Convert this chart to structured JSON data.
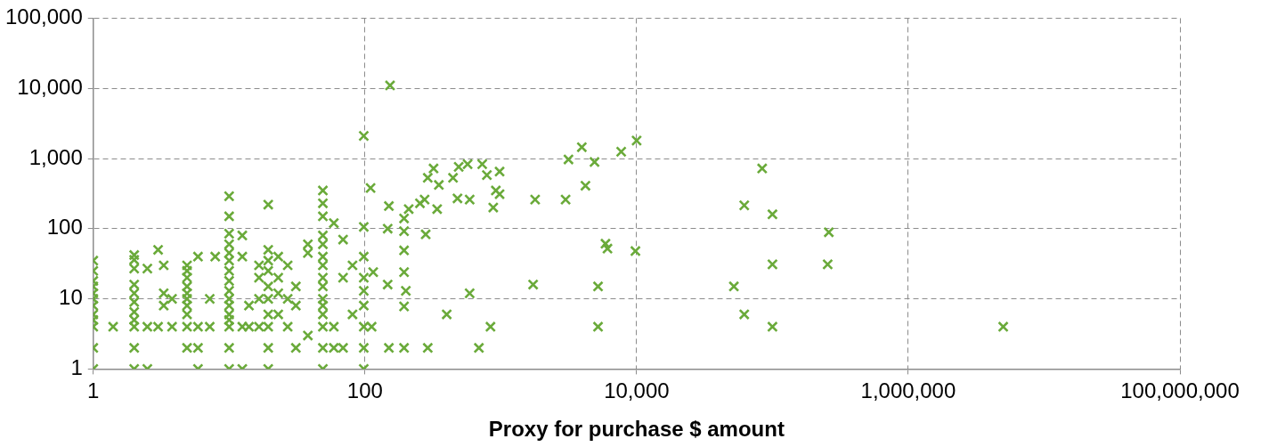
{
  "chart_data": {
    "type": "scatter",
    "xlabel": "Proxy for purchase $ amount",
    "log": "xy",
    "grid": true,
    "legend": false,
    "marker": "cross",
    "xlim": [
      1,
      100000000
    ],
    "ylim": [
      1,
      100000
    ],
    "xticks": [
      1,
      100,
      {
        "value": 10000,
        "label": "10,000"
      },
      {
        "value": 1000000,
        "label": "1,000,000"
      },
      {
        "value": 100000000,
        "label": "100,000,000"
      }
    ],
    "yticks": [
      1,
      10,
      100,
      {
        "value": 1000,
        "label": "1,000"
      },
      {
        "value": 10000,
        "label": "10,000"
      },
      {
        "value": 100000,
        "label": "100,000"
      }
    ],
    "series": [
      {
        "color": "#6aaa3a",
        "x": [
          1,
          1,
          1,
          1,
          1,
          1,
          1,
          1,
          1,
          1,
          1,
          1,
          1.4,
          2,
          2,
          2,
          2,
          2,
          2,
          2,
          2,
          2,
          2,
          2,
          2.5,
          2.5,
          2.5,
          3,
          3,
          3.3,
          3.3,
          3.3,
          3.8,
          3.8,
          4.9,
          4.9,
          4.9,
          4.9,
          4.9,
          4.9,
          4.9,
          4.9,
          4.9,
          4.9,
          5.9,
          5.9,
          5.9,
          5.9,
          7.2,
          7.2,
          7.9,
          10,
          10,
          10,
          10,
          10,
          10,
          10,
          10,
          10,
          10,
          10,
          10,
          10,
          10,
          10,
          10,
          12.5,
          12.5,
          12.5,
          12.5,
          14,
          14,
          16.6,
          16.6,
          16.6,
          16.6,
          19.4,
          19.4,
          19.4,
          19.4,
          19.4,
          19.4,
          19.4,
          19.4,
          19.4,
          19.4,
          23,
          23,
          23,
          23,
          27,
          27,
          27,
          31,
          31,
          31,
          38,
          38,
          38,
          49,
          49,
          49,
          49,
          49,
          49,
          49,
          49,
          49,
          49,
          49,
          49,
          49,
          49,
          49,
          59,
          59,
          59,
          69,
          69,
          69,
          81,
          81,
          98,
          98,
          98,
          98,
          98,
          98,
          98,
          98,
          98,
          110,
          115,
          112,
          147,
          147,
          150,
          150,
          153,
          194,
          194,
          194,
          194,
          194,
          194,
          200,
          210,
          254,
          275,
          280,
          290,
          290,
          320,
          340,
          350,
          400,
          445,
          490,
          480,
          570,
          590,
          590,
          690,
          730,
          790,
          840,
          880,
          920,
          980,
          980,
          1730,
          1790,
          3000,
          3150,
          3950,
          4200,
          4900,
          5200,
          5200,
          5900,
          6100,
          7700,
          9800,
          10000,
          52000,
          62000,
          62000,
          84000,
          100000,
          100000,
          100000,
          255000,
          260000,
          5000000
        ],
        "values": [
          35,
          25,
          18,
          15,
          12,
          10,
          8,
          6,
          5,
          4,
          2,
          1,
          4,
          42,
          36,
          27,
          16,
          12,
          9,
          6.5,
          5,
          4,
          2,
          1,
          1,
          4,
          27,
          50,
          4,
          30,
          12,
          8,
          10,
          4,
          30,
          25,
          20,
          15,
          12,
          10,
          8,
          6,
          4,
          2,
          40,
          4,
          2,
          1,
          10,
          4,
          40,
          290,
          150,
          85,
          60,
          45,
          35,
          25,
          18,
          13,
          10,
          8,
          6,
          5,
          4,
          2,
          1,
          80,
          40,
          4,
          1,
          8,
          4,
          30,
          20,
          10,
          4,
          220,
          50,
          35,
          25,
          15,
          10,
          6,
          4,
          2,
          1,
          40,
          20,
          12,
          6,
          30,
          10,
          4,
          15,
          8,
          2,
          60,
          45,
          3,
          350,
          230,
          150,
          80,
          60,
          40,
          30,
          20,
          15,
          10,
          8,
          6,
          4,
          2,
          1,
          120,
          4,
          2,
          70,
          20,
          2,
          30,
          6,
          2100,
          106,
          40,
          20,
          13,
          8,
          4,
          2,
          1,
          380,
          24,
          4,
          16,
          100,
          210,
          2,
          11000,
          140,
          92,
          49,
          24,
          7.8,
          2,
          13,
          190,
          230,
          260,
          83,
          530,
          2,
          720,
          190,
          420,
          6,
          530,
          760,
          270,
          830,
          260,
          12,
          2,
          830,
          580,
          4,
          200,
          350,
          650,
          310,
          16,
          260,
          260,
          970,
          1450,
          410,
          890,
          15,
          4,
          61,
          52,
          1250,
          48,
          1800,
          15,
          215,
          6,
          720,
          160,
          31,
          4,
          31,
          89,
          4
        ]
      }
    ]
  }
}
